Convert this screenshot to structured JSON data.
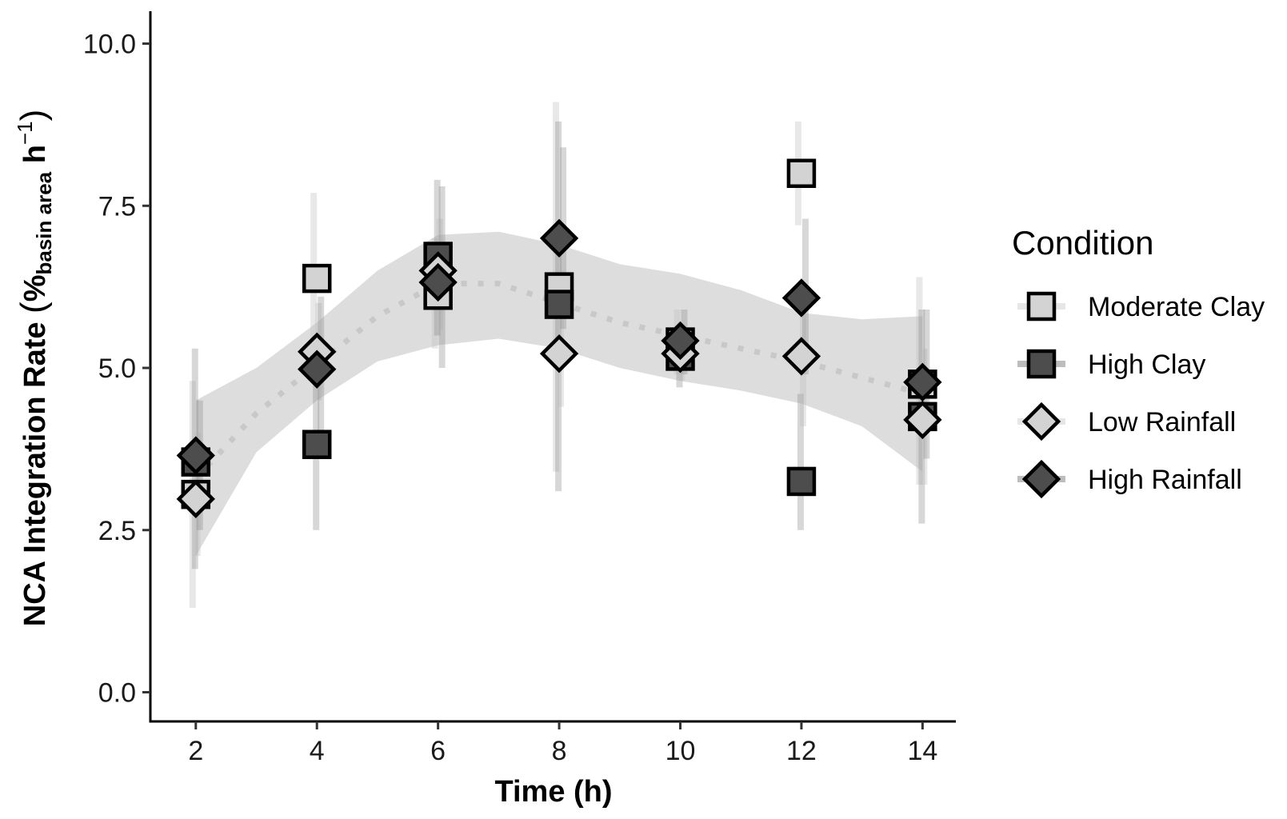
{
  "chart_data": {
    "type": "scatter",
    "xlabel": "Time (h)",
    "ylabel": {
      "main": "NCA Integration Rate ",
      "open_paren": "(",
      "percent": "%",
      "subscript": "basin area",
      "unit": " h",
      "superscript": "−1",
      "close_paren": ")"
    },
    "xlim": [
      1.25,
      14.55
    ],
    "ylim": [
      -0.45,
      10.5
    ],
    "xticks": [
      2,
      4,
      6,
      8,
      10,
      12,
      14
    ],
    "xtick_labels": [
      "2",
      "4",
      "6",
      "8",
      "10",
      "12",
      "14"
    ],
    "yticks": [
      0,
      2.5,
      5,
      7.5,
      10
    ],
    "ytick_labels": [
      "0.0",
      "2.5",
      "5.0",
      "7.5",
      "10.0"
    ],
    "grid": false,
    "legend": {
      "title": "Condition",
      "position": "right"
    },
    "series": [
      {
        "name": "Moderate Clay",
        "marker": "square",
        "fill": "#d3d3d3",
        "x": [
          2,
          4,
          6,
          8,
          10,
          12,
          14
        ],
        "y": [
          3.05,
          6.38,
          6.12,
          6.25,
          5.4,
          8.0,
          4.75
        ],
        "err_low": [
          1.3,
          5.1,
          5.3,
          3.4,
          4.9,
          7.2,
          3.2
        ],
        "err_high": [
          4.8,
          7.7,
          7.0,
          9.1,
          5.9,
          8.8,
          6.4
        ]
      },
      {
        "name": "High Clay",
        "marker": "square",
        "fill": "#4d4d4d",
        "x": [
          2,
          4,
          6,
          8,
          10,
          12,
          14
        ],
        "y": [
          3.55,
          3.82,
          6.72,
          5.98,
          5.18,
          3.25,
          4.25
        ],
        "err_low": [
          1.9,
          2.5,
          5.5,
          3.1,
          4.7,
          2.5,
          2.6
        ],
        "err_high": [
          5.3,
          5.2,
          7.9,
          8.8,
          5.6,
          4.6,
          5.9
        ]
      },
      {
        "name": "Low Rainfall",
        "marker": "diamond",
        "fill": "#d3d3d3",
        "x": [
          2,
          4,
          6,
          8,
          10,
          12,
          14
        ],
        "y": [
          2.98,
          5.25,
          6.5,
          5.22,
          5.22,
          5.18,
          4.2
        ],
        "err_low": [
          2.1,
          4.5,
          5.6,
          4.4,
          4.8,
          4.1,
          3.2
        ],
        "err_high": [
          4.0,
          6.0,
          7.3,
          6.2,
          5.6,
          6.2,
          5.3
        ]
      },
      {
        "name": "High Rainfall",
        "marker": "diamond",
        "fill": "#4d4d4d",
        "x": [
          2,
          4,
          6,
          8,
          10,
          12,
          14
        ],
        "y": [
          3.65,
          4.98,
          6.32,
          7.0,
          5.42,
          6.08,
          4.78
        ],
        "err_low": [
          2.5,
          4.0,
          5.0,
          5.6,
          4.9,
          4.9,
          3.6
        ],
        "err_high": [
          4.5,
          6.1,
          7.8,
          8.4,
          5.9,
          7.3,
          5.9
        ]
      }
    ],
    "trend": {
      "style": "dotted",
      "color": "#c8c8c8",
      "x": [
        2,
        3,
        4,
        5,
        6,
        7,
        8,
        9,
        10,
        11,
        12,
        13,
        14
      ],
      "y": [
        3.3,
        4.3,
        5.05,
        5.8,
        6.3,
        6.3,
        6.0,
        5.7,
        5.5,
        5.3,
        5.1,
        4.85,
        4.6
      ],
      "band_low": [
        2.1,
        3.7,
        4.5,
        5.1,
        5.35,
        5.45,
        5.3,
        5.0,
        4.8,
        4.65,
        4.45,
        4.1,
        3.4
      ],
      "band_high": [
        4.5,
        5.0,
        5.7,
        6.5,
        7.05,
        7.1,
        6.9,
        6.6,
        6.45,
        6.2,
        5.85,
        5.75,
        5.8
      ]
    }
  }
}
